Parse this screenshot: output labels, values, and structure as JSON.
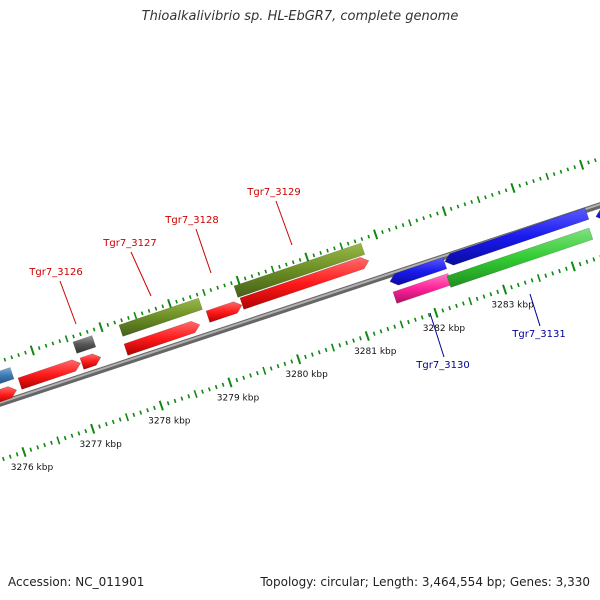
{
  "title": "Thioalkalivibrio sp. HL-EbGR7, complete genome",
  "footer": {
    "accession": "Accession: NC_011901",
    "topology": "Topology: circular; Length: 3,464,554 bp; Genes: 3,330"
  },
  "axis": {
    "unit": "kbp",
    "ticks": [
      {
        "kbp": 3276,
        "label": "3276 kbp"
      },
      {
        "kbp": 3277,
        "label": "3277 kbp"
      },
      {
        "kbp": 3278,
        "label": "3278 kbp"
      },
      {
        "kbp": 3279,
        "label": "3279 kbp"
      },
      {
        "kbp": 3280,
        "label": "3280 kbp"
      },
      {
        "kbp": 3281,
        "label": "3281 kbp"
      },
      {
        "kbp": 3282,
        "label": "3282 kbp"
      },
      {
        "kbp": 3283,
        "label": "3283 kbp"
      }
    ]
  },
  "gene_labels": [
    {
      "name": "Tgr7_3126",
      "color": "#cc0000",
      "strand": "forward"
    },
    {
      "name": "Tgr7_3127",
      "color": "#cc0000",
      "strand": "forward"
    },
    {
      "name": "Tgr7_3128",
      "color": "#cc0000",
      "strand": "forward"
    },
    {
      "name": "Tgr7_3129",
      "color": "#cc0000",
      "strand": "forward"
    },
    {
      "name": "Tgr7_3130",
      "color": "#000099",
      "strand": "reverse"
    },
    {
      "name": "Tgr7_3131",
      "color": "#000099",
      "strand": "reverse"
    }
  ],
  "colors": {
    "cds_red": "#ff1a1a",
    "rna_olive": "#6b8e23",
    "gene_gray": "#555555",
    "cds_blue": "#1a1aee",
    "cds_green": "#33cc33",
    "cds_pink": "#ff2299",
    "cds_steelblue": "#3a78b0",
    "tick_green": "#118811",
    "backbone": "#8c8c8c"
  }
}
